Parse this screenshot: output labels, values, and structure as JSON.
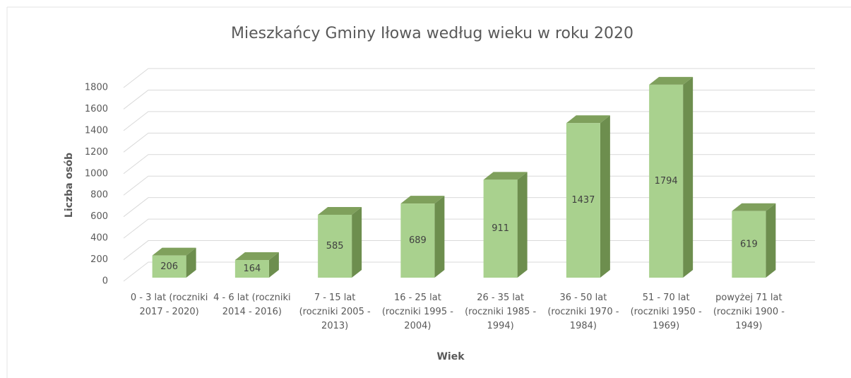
{
  "chart_data": {
    "type": "bar3d",
    "title": "Mieszkańcy Gminy Iłowa według wieku w roku 2020",
    "x_label": "Wiek",
    "y_label": "Liczba osób",
    "categories": [
      "0 - 3 lat (roczniki 2017 - 2020)",
      "4 - 6 lat (roczniki 2014 - 2016)",
      "7 - 15 lat (roczniki 2005 - 2013)",
      "16 - 25 lat (roczniki 1995 - 2004)",
      "26 - 35 lat (roczniki 1985 - 1994)",
      "36 - 50 lat (roczniki 1970 - 1984)",
      "51 - 70 lat (roczniki 1950 - 1969)",
      "powyżej 71 lat (roczniki 1900 - 1949)"
    ],
    "values": [
      206,
      164,
      585,
      689,
      911,
      1437,
      1794,
      619
    ],
    "color": "#a9d18e",
    "ylim": [
      0,
      1800
    ],
    "yticks": [
      0,
      200,
      400,
      600,
      800,
      1000,
      1200,
      1400,
      1600,
      1800
    ],
    "grid": true
  }
}
